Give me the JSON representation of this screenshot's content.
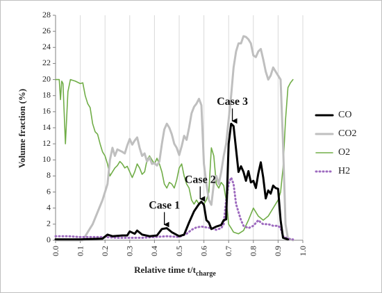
{
  "chart_data": {
    "type": "line",
    "title": "",
    "xlabel": "Relative time t/t",
    "xlabel_subscript": "charge",
    "ylabel": "Volume fraction (%)",
    "xlim": [
      0,
      1
    ],
    "ylim": [
      0,
      28
    ],
    "x_ticks": [
      "0.0",
      "0.1",
      "0.2",
      "0.3",
      "0.4",
      "0.5",
      "0.6",
      "0.7",
      "0.8",
      "0.9",
      "1.0"
    ],
    "y_ticks": [
      "0",
      "2",
      "4",
      "6",
      "8",
      "10",
      "12",
      "14",
      "16",
      "18",
      "20",
      "22",
      "24",
      "26",
      "28"
    ],
    "grid": "vertical",
    "legend_position": "right",
    "series": [
      {
        "name": "CO",
        "color": "#000000",
        "style": "solid-thick",
        "points": [
          [
            0.0,
            0.1
          ],
          [
            0.1,
            0.1
          ],
          [
            0.19,
            0.2
          ],
          [
            0.21,
            0.7
          ],
          [
            0.23,
            0.5
          ],
          [
            0.27,
            0.6
          ],
          [
            0.29,
            0.6
          ],
          [
            0.3,
            1.1
          ],
          [
            0.32,
            0.8
          ],
          [
            0.33,
            1.2
          ],
          [
            0.35,
            0.7
          ],
          [
            0.38,
            0.5
          ],
          [
            0.41,
            0.6
          ],
          [
            0.43,
            1.4
          ],
          [
            0.45,
            1.5
          ],
          [
            0.47,
            1.0
          ],
          [
            0.5,
            0.5
          ],
          [
            0.52,
            0.7
          ],
          [
            0.54,
            2.2
          ],
          [
            0.56,
            3.6
          ],
          [
            0.58,
            4.5
          ],
          [
            0.59,
            4.8
          ],
          [
            0.6,
            4.4
          ],
          [
            0.61,
            2.5
          ],
          [
            0.62,
            2.2
          ],
          [
            0.63,
            1.4
          ],
          [
            0.65,
            1.7
          ],
          [
            0.67,
            1.9
          ],
          [
            0.68,
            2.5
          ],
          [
            0.69,
            2.6
          ],
          [
            0.7,
            12.0
          ],
          [
            0.71,
            14.5
          ],
          [
            0.72,
            14.2
          ],
          [
            0.73,
            11.3
          ],
          [
            0.74,
            8.5
          ],
          [
            0.75,
            9.2
          ],
          [
            0.76,
            8.5
          ],
          [
            0.77,
            7.4
          ],
          [
            0.78,
            8.6
          ],
          [
            0.79,
            7.2
          ],
          [
            0.8,
            7.4
          ],
          [
            0.81,
            6.5
          ],
          [
            0.82,
            8.3
          ],
          [
            0.83,
            9.7
          ],
          [
            0.84,
            7.8
          ],
          [
            0.85,
            5.2
          ],
          [
            0.86,
            6.2
          ],
          [
            0.87,
            5.8
          ],
          [
            0.88,
            6.8
          ],
          [
            0.89,
            6.5
          ],
          [
            0.9,
            6.4
          ],
          [
            0.91,
            2.5
          ],
          [
            0.92,
            0.3
          ],
          [
            0.94,
            0.1
          ]
        ]
      },
      {
        "name": "CO2",
        "color": "#bfbfbf",
        "style": "solid-thick",
        "points": [
          [
            0.0,
            0.0
          ],
          [
            0.11,
            0.0
          ],
          [
            0.13,
            1.0
          ],
          [
            0.15,
            2.0
          ],
          [
            0.17,
            3.5
          ],
          [
            0.19,
            5.0
          ],
          [
            0.21,
            7.0
          ],
          [
            0.22,
            10.0
          ],
          [
            0.23,
            11.5
          ],
          [
            0.24,
            10.5
          ],
          [
            0.25,
            11.3
          ],
          [
            0.27,
            11.0
          ],
          [
            0.28,
            10.8
          ],
          [
            0.29,
            11.8
          ],
          [
            0.3,
            12.6
          ],
          [
            0.31,
            11.9
          ],
          [
            0.32,
            12.4
          ],
          [
            0.33,
            12.8
          ],
          [
            0.34,
            11.5
          ],
          [
            0.35,
            10.5
          ],
          [
            0.36,
            10.8
          ],
          [
            0.37,
            9.8
          ],
          [
            0.38,
            10.3
          ],
          [
            0.39,
            9.5
          ],
          [
            0.4,
            9.6
          ],
          [
            0.41,
            9.3
          ],
          [
            0.42,
            9.8
          ],
          [
            0.43,
            12.0
          ],
          [
            0.44,
            13.8
          ],
          [
            0.45,
            14.5
          ],
          [
            0.46,
            14.0
          ],
          [
            0.47,
            13.2
          ],
          [
            0.48,
            12.0
          ],
          [
            0.49,
            11.5
          ],
          [
            0.5,
            10.6
          ],
          [
            0.51,
            11.7
          ],
          [
            0.52,
            13.0
          ],
          [
            0.53,
            12.5
          ],
          [
            0.54,
            14.0
          ],
          [
            0.55,
            15.8
          ],
          [
            0.56,
            16.6
          ],
          [
            0.57,
            17.0
          ],
          [
            0.58,
            17.6
          ],
          [
            0.59,
            16.8
          ],
          [
            0.6,
            9.5
          ],
          [
            0.61,
            7.0
          ],
          [
            0.62,
            5.0
          ],
          [
            0.63,
            4.4
          ],
          [
            0.64,
            7.0
          ],
          [
            0.65,
            8.0
          ],
          [
            0.66,
            7.0
          ],
          [
            0.67,
            8.5
          ],
          [
            0.68,
            10.5
          ],
          [
            0.69,
            12.0
          ],
          [
            0.7,
            15.0
          ],
          [
            0.71,
            18.0
          ],
          [
            0.72,
            21.5
          ],
          [
            0.73,
            23.5
          ],
          [
            0.74,
            24.5
          ],
          [
            0.75,
            24.5
          ],
          [
            0.76,
            25.4
          ],
          [
            0.77,
            25.3
          ],
          [
            0.78,
            25.0
          ],
          [
            0.79,
            24.5
          ],
          [
            0.8,
            23.0
          ],
          [
            0.81,
            22.8
          ],
          [
            0.82,
            23.5
          ],
          [
            0.83,
            23.8
          ],
          [
            0.84,
            22.5
          ],
          [
            0.85,
            21.0
          ],
          [
            0.86,
            20.0
          ],
          [
            0.87,
            20.5
          ],
          [
            0.88,
            21.5
          ],
          [
            0.89,
            21.0
          ],
          [
            0.9,
            20.5
          ],
          [
            0.91,
            20.0
          ],
          [
            0.92,
            12.0
          ],
          [
            0.93,
            2.0
          ],
          [
            0.94,
            0.2
          ],
          [
            0.96,
            0.0
          ]
        ]
      },
      {
        "name": "O2",
        "color": "#70ad47",
        "style": "solid",
        "points": [
          [
            0.0,
            20.0
          ],
          [
            0.015,
            20.0
          ],
          [
            0.02,
            17.5
          ],
          [
            0.025,
            19.8
          ],
          [
            0.03,
            19.5
          ],
          [
            0.04,
            12.0
          ],
          [
            0.05,
            18.5
          ],
          [
            0.06,
            20.0
          ],
          [
            0.08,
            19.8
          ],
          [
            0.1,
            19.5
          ],
          [
            0.11,
            19.6
          ],
          [
            0.12,
            18.0
          ],
          [
            0.13,
            17.0
          ],
          [
            0.14,
            16.5
          ],
          [
            0.15,
            14.5
          ],
          [
            0.16,
            13.5
          ],
          [
            0.17,
            13.2
          ],
          [
            0.18,
            12.0
          ],
          [
            0.19,
            11.0
          ],
          [
            0.2,
            10.5
          ],
          [
            0.21,
            9.5
          ],
          [
            0.22,
            8.0
          ],
          [
            0.23,
            8.5
          ],
          [
            0.24,
            9.0
          ],
          [
            0.25,
            9.3
          ],
          [
            0.26,
            9.8
          ],
          [
            0.27,
            9.5
          ],
          [
            0.28,
            9.0
          ],
          [
            0.29,
            9.2
          ],
          [
            0.3,
            8.5
          ],
          [
            0.31,
            7.8
          ],
          [
            0.32,
            8.5
          ],
          [
            0.33,
            9.5
          ],
          [
            0.34,
            9.0
          ],
          [
            0.35,
            8.2
          ],
          [
            0.36,
            8.5
          ],
          [
            0.37,
            10.0
          ],
          [
            0.38,
            10.5
          ],
          [
            0.39,
            10.0
          ],
          [
            0.4,
            9.5
          ],
          [
            0.41,
            10.2
          ],
          [
            0.42,
            9.5
          ],
          [
            0.43,
            8.5
          ],
          [
            0.44,
            7.0
          ],
          [
            0.45,
            6.5
          ],
          [
            0.46,
            7.2
          ],
          [
            0.47,
            7.0
          ],
          [
            0.48,
            6.5
          ],
          [
            0.49,
            7.5
          ],
          [
            0.5,
            9.0
          ],
          [
            0.51,
            9.5
          ],
          [
            0.52,
            8.0
          ],
          [
            0.53,
            7.0
          ],
          [
            0.54,
            6.5
          ],
          [
            0.55,
            5.0
          ],
          [
            0.56,
            4.5
          ],
          [
            0.57,
            5.0
          ],
          [
            0.58,
            4.5
          ],
          [
            0.59,
            4.8
          ],
          [
            0.6,
            4.5
          ],
          [
            0.61,
            5.0
          ],
          [
            0.62,
            6.0
          ],
          [
            0.63,
            11.5
          ],
          [
            0.64,
            10.5
          ],
          [
            0.65,
            7.0
          ],
          [
            0.66,
            6.5
          ],
          [
            0.67,
            7.2
          ],
          [
            0.68,
            6.8
          ],
          [
            0.69,
            5.0
          ],
          [
            0.7,
            2.0
          ],
          [
            0.71,
            1.5
          ],
          [
            0.72,
            1.0
          ],
          [
            0.74,
            0.8
          ],
          [
            0.76,
            1.2
          ],
          [
            0.78,
            2.5
          ],
          [
            0.8,
            4.0
          ],
          [
            0.82,
            3.0
          ],
          [
            0.84,
            2.5
          ],
          [
            0.86,
            3.0
          ],
          [
            0.88,
            4.0
          ],
          [
            0.9,
            5.0
          ],
          [
            0.91,
            6.0
          ],
          [
            0.92,
            9.0
          ],
          [
            0.93,
            15.0
          ],
          [
            0.94,
            19.0
          ],
          [
            0.95,
            19.6
          ],
          [
            0.96,
            20.0
          ]
        ]
      },
      {
        "name": "H2",
        "color": "#9e6bbf",
        "style": "dotted",
        "points": [
          [
            0.0,
            0.5
          ],
          [
            0.05,
            0.5
          ],
          [
            0.1,
            0.4
          ],
          [
            0.15,
            0.4
          ],
          [
            0.2,
            0.4
          ],
          [
            0.25,
            0.3
          ],
          [
            0.3,
            0.3
          ],
          [
            0.35,
            0.3
          ],
          [
            0.4,
            0.4
          ],
          [
            0.45,
            0.5
          ],
          [
            0.5,
            0.4
          ],
          [
            0.53,
            0.8
          ],
          [
            0.55,
            1.3
          ],
          [
            0.57,
            1.6
          ],
          [
            0.59,
            1.7
          ],
          [
            0.61,
            1.6
          ],
          [
            0.63,
            1.5
          ],
          [
            0.65,
            1.3
          ],
          [
            0.67,
            1.5
          ],
          [
            0.68,
            2.0
          ],
          [
            0.69,
            5.0
          ],
          [
            0.7,
            7.0
          ],
          [
            0.71,
            7.8
          ],
          [
            0.72,
            7.0
          ],
          [
            0.73,
            4.5
          ],
          [
            0.74,
            3.5
          ],
          [
            0.75,
            2.5
          ],
          [
            0.76,
            1.8
          ],
          [
            0.78,
            1.5
          ],
          [
            0.8,
            1.8
          ],
          [
            0.82,
            2.5
          ],
          [
            0.83,
            2.2
          ],
          [
            0.84,
            2.0
          ],
          [
            0.86,
            2.0
          ],
          [
            0.88,
            1.8
          ],
          [
            0.9,
            1.8
          ],
          [
            0.91,
            1.5
          ],
          [
            0.92,
            0.5
          ],
          [
            0.94,
            0.2
          ],
          [
            0.96,
            0.1
          ]
        ]
      }
    ],
    "annotations": [
      {
        "text": "Case 1",
        "x": 0.44,
        "y": 1.6
      },
      {
        "text": "Case 2",
        "x": 0.585,
        "y": 4.8
      },
      {
        "text": "Case 3",
        "x": 0.715,
        "y": 14.5
      }
    ]
  }
}
